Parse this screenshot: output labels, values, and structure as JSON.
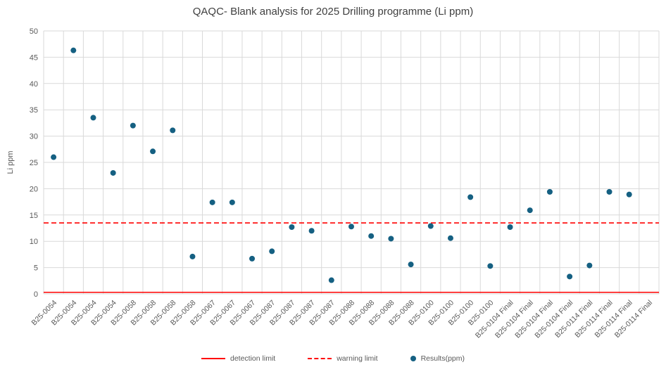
{
  "page": {
    "background": "#ffffff"
  },
  "chart_data": {
    "type": "scatter",
    "title": "QAQC- Blank analysis for 2025 Drilling programme (Li ppm)",
    "xlabel": "",
    "ylabel": "Li ppm",
    "ylim": [
      0,
      50
    ],
    "ytick_step": 5,
    "grid": true,
    "legend_position": "bottom",
    "series_name": "Results(ppm)",
    "categories": [
      "B25-0054",
      "B25-0054",
      "B25-0054",
      "B25-0054",
      "B25-0058",
      "B25-0058",
      "B25-0058",
      "B25-0058",
      "B25-0067",
      "B25-0067",
      "B25-0067",
      "B25-0087",
      "B25-0087",
      "B25-0087",
      "B25-0087",
      "B25-0088",
      "B25-0088",
      "B25-0088",
      "B25-0088",
      "B25-0100",
      "B25-0100",
      "B25-0100",
      "B25-0100",
      "B25-0104 Final",
      "B25-0104 Final",
      "B25-0104 Final",
      "B25-0104 Final",
      "B25-0114 Final",
      "B25-0114 Final",
      "B25-0114 Final",
      "B25-0114 Final"
    ],
    "values": [
      26.0,
      46.3,
      33.5,
      23.0,
      32.0,
      27.1,
      31.1,
      7.1,
      17.4,
      17.4,
      6.7,
      8.1,
      12.7,
      12.0,
      2.6,
      12.8,
      11.0,
      10.5,
      5.6,
      12.9,
      10.6,
      18.4,
      5.3,
      12.7,
      15.9,
      19.4,
      3.3,
      5.4,
      19.4,
      18.9,
      null
    ],
    "limits": {
      "detection": {
        "label": "detection limit",
        "value": 0.3,
        "style": "solid",
        "color": "#ff0000"
      },
      "warning": {
        "label": "warning limit",
        "value": 13.5,
        "style": "dashed",
        "color": "#ff0000"
      }
    },
    "colors": {
      "point": "#156082",
      "grid": "#d9d9d9",
      "tick_text": "#595959",
      "title_text": "#404040"
    }
  }
}
